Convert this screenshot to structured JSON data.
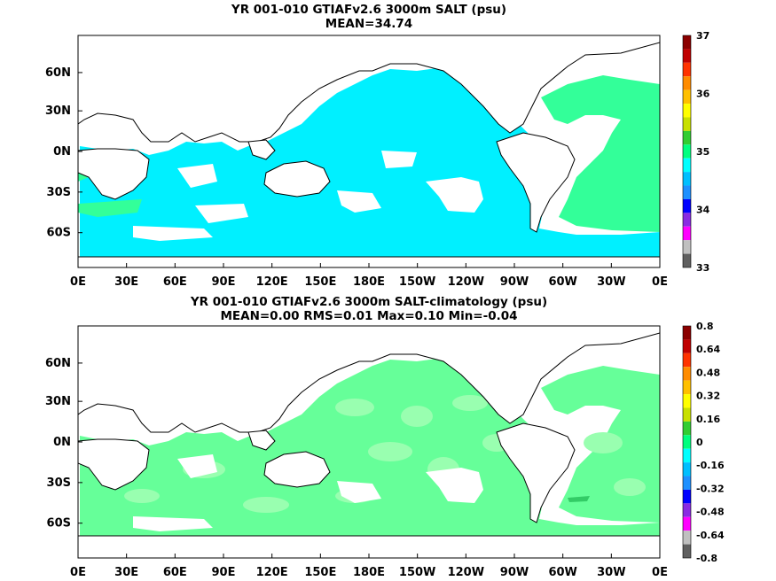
{
  "panel1": {
    "title_line1": "YR 001-010 GTIAFv2.6 3000m SALT (psu)",
    "title_line2": "MEAN=34.74",
    "lat_labels": [
      "60N",
      "30N",
      "0N",
      "30S",
      "60S"
    ],
    "lon_labels": [
      "0E",
      "30E",
      "60E",
      "90E",
      "120E",
      "150E",
      "180E",
      "150W",
      "120W",
      "90W",
      "60W",
      "30W",
      "0E"
    ],
    "colorbar": {
      "labels": [
        "37",
        "36",
        "35",
        "34",
        "33"
      ],
      "colors": [
        "#8b0000",
        "#c00000",
        "#ff3300",
        "#ff8c00",
        "#ffc000",
        "#ffff00",
        "#c8e000",
        "#32cd32",
        "#00ff7f",
        "#00ffff",
        "#00bfff",
        "#1e90ff",
        "#0000ff",
        "#8a2be2",
        "#ff00ff",
        "#c0c0c0",
        "#606060"
      ]
    }
  },
  "panel2": {
    "title_line1": "YR 001-010 GTIAFv2.6 3000m SALT-climatology (psu)",
    "title_line2": "MEAN=0.00   RMS=0.01   Max=0.10   Min=-0.04",
    "lat_labels": [
      "60N",
      "30N",
      "0N",
      "30S",
      "60S"
    ],
    "lon_labels": [
      "0E",
      "30E",
      "60E",
      "90E",
      "120E",
      "150E",
      "180E",
      "150W",
      "120W",
      "90W",
      "60W",
      "30W",
      "0E"
    ],
    "colorbar": {
      "labels": [
        "0.8",
        "0.64",
        "0.48",
        "0.32",
        "0.16",
        "0",
        "-0.16",
        "-0.32",
        "-0.48",
        "-0.64",
        "-0.8"
      ],
      "colors": [
        "#8b0000",
        "#c00000",
        "#ff3300",
        "#ff8c00",
        "#ffc000",
        "#ffff00",
        "#c8e000",
        "#32cd32",
        "#00ff7f",
        "#00ffff",
        "#00bfff",
        "#1e90ff",
        "#0000ff",
        "#8a2be2",
        "#ff00ff",
        "#c0c0c0",
        "#606060"
      ]
    }
  },
  "colors": {
    "ocean_salt": "#00f0ff",
    "atlantic_salt": "#33ff99",
    "anomaly_light": "#66ff99",
    "anomaly_pale": "#99ffb0",
    "land": "#ffffff"
  }
}
